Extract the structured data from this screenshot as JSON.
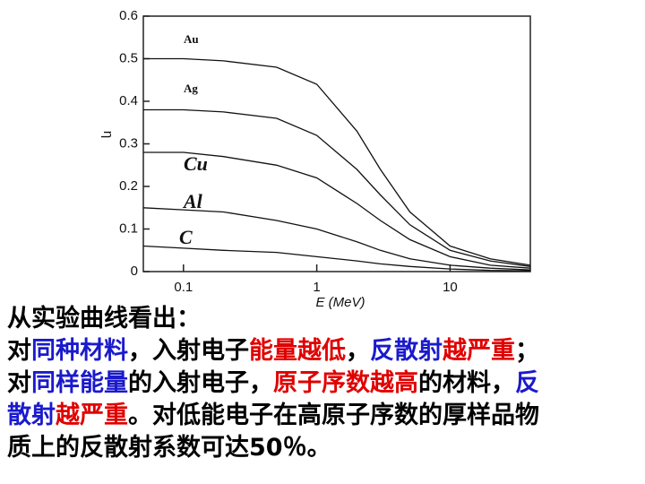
{
  "chart_data": {
    "type": "line",
    "ylabel": "η",
    "xlabel": "E (MeV)",
    "x": [
      0.05,
      0.1,
      0.2,
      0.5,
      1,
      2,
      3,
      5,
      10,
      20,
      40
    ],
    "series": [
      {
        "name": "Au",
        "color": "#111111",
        "values": [
          0.5,
          0.5,
          0.495,
          0.48,
          0.44,
          0.33,
          0.24,
          0.14,
          0.06,
          0.03,
          0.015
        ]
      },
      {
        "name": "Ag",
        "color": "#111111",
        "values": [
          0.38,
          0.38,
          0.375,
          0.36,
          0.32,
          0.24,
          0.18,
          0.11,
          0.05,
          0.025,
          0.012
        ]
      },
      {
        "name": "Cu",
        "color": "#111111",
        "values": [
          0.28,
          0.28,
          0.27,
          0.25,
          0.22,
          0.16,
          0.12,
          0.075,
          0.035,
          0.015,
          0.008
        ]
      },
      {
        "name": "Al",
        "color": "#111111",
        "values": [
          0.15,
          0.145,
          0.14,
          0.12,
          0.1,
          0.07,
          0.05,
          0.03,
          0.015,
          0.008,
          0.004
        ]
      },
      {
        "name": "C",
        "color": "#111111",
        "values": [
          0.06,
          0.055,
          0.05,
          0.045,
          0.035,
          0.025,
          0.018,
          0.012,
          0.006,
          0.003,
          0.002
        ]
      }
    ],
    "xscale": "log",
    "xlim": [
      0.05,
      40
    ],
    "xticks": [
      0.1,
      1,
      10
    ],
    "ylim": [
      0,
      0.6
    ],
    "yticks": [
      0,
      0.1,
      0.2,
      0.3,
      0.4,
      0.5,
      0.6
    ]
  },
  "text": {
    "lines": [
      [
        {
          "text": "从实验曲线看出：",
          "color": "#000000"
        }
      ],
      [
        {
          "text": "对",
          "color": "#000000"
        },
        {
          "text": "同种材料",
          "color": "#1a1acc"
        },
        {
          "text": "，入射电子",
          "color": "#000000"
        },
        {
          "text": "能量越低",
          "color": "#e00000"
        },
        {
          "text": "，",
          "color": "#000000"
        },
        {
          "text": "反散射",
          "color": "#1a1acc"
        },
        {
          "text": "越严重",
          "color": "#e00000"
        },
        {
          "text": "；",
          "color": "#000000"
        }
      ],
      [
        {
          "text": "对",
          "color": "#000000"
        },
        {
          "text": "同样能量",
          "color": "#1a1acc"
        },
        {
          "text": "的入射电子，",
          "color": "#000000"
        },
        {
          "text": "原子序数越高",
          "color": "#e00000"
        },
        {
          "text": "的材料，",
          "color": "#000000"
        },
        {
          "text": "反",
          "color": "#1a1acc"
        }
      ],
      [
        {
          "text": "散射",
          "color": "#1a1acc"
        },
        {
          "text": "越严重",
          "color": "#e00000"
        },
        {
          "text": "。对低能电子在高原子序数的厚样品物",
          "color": "#000000"
        }
      ],
      [
        {
          "text": "质上的反散射系数可达50％。",
          "color": "#000000"
        }
      ]
    ]
  }
}
